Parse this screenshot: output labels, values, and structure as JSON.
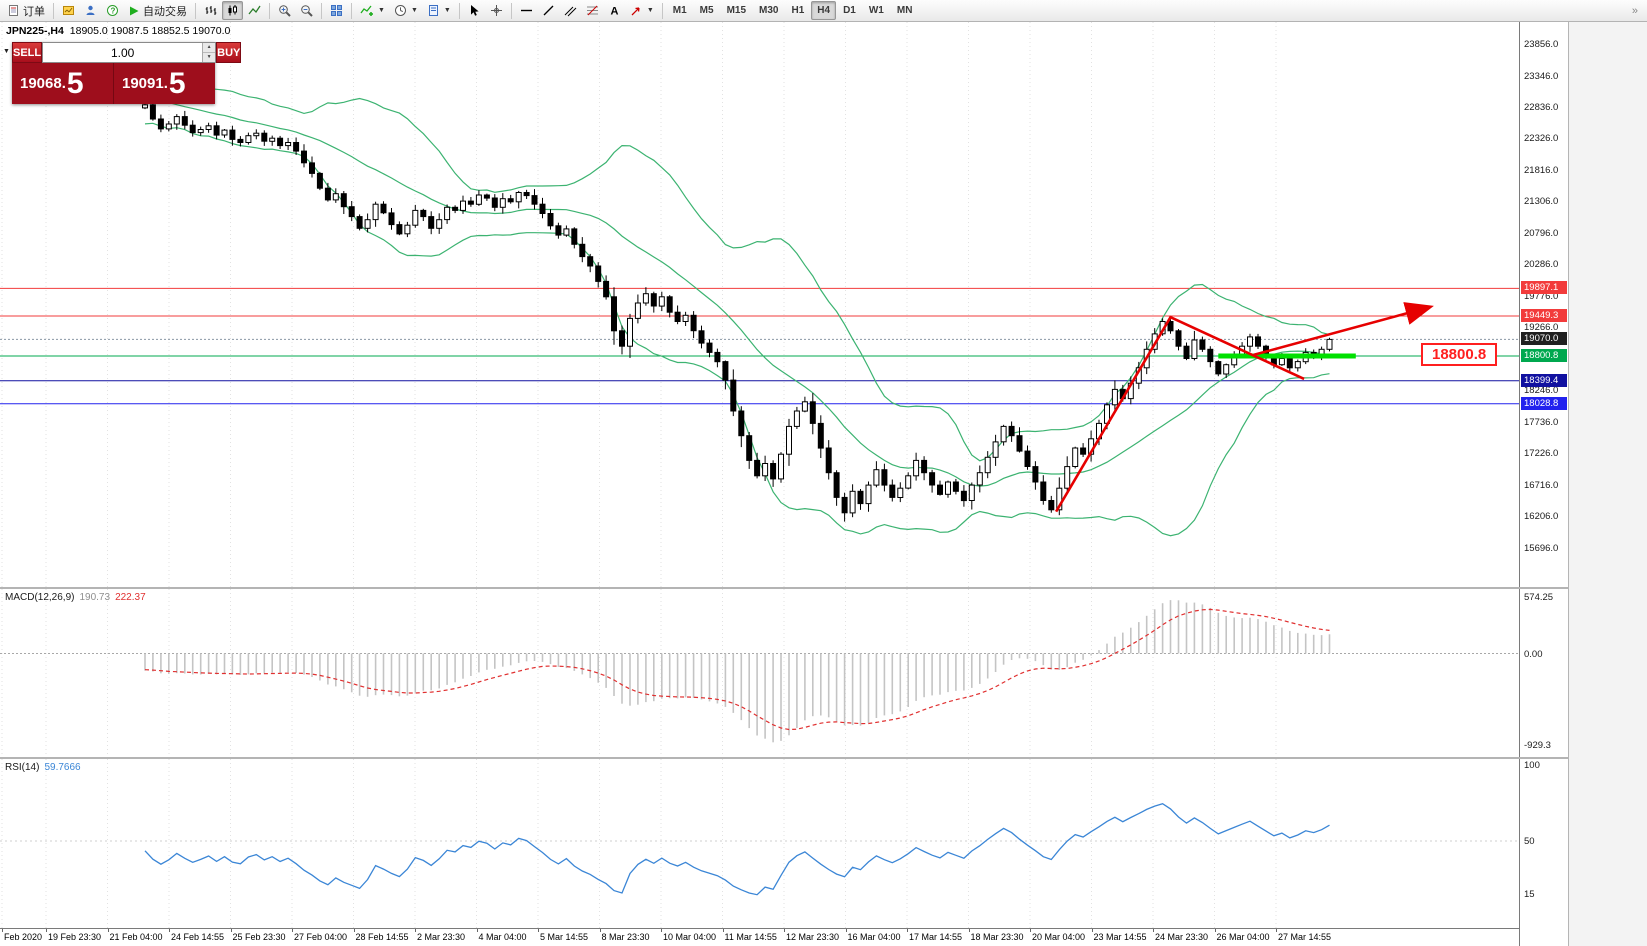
{
  "toolbar": {
    "new_order": "订单",
    "autotrade": "自动交易",
    "timeframes": [
      "M1",
      "M5",
      "M15",
      "M30",
      "H1",
      "H4",
      "D1",
      "W1",
      "MN"
    ],
    "active_timeframe": "H4"
  },
  "chart": {
    "symbol_period": "JPN225-,H4",
    "ohlc": "18905.0 19087.5 18852.5 19070.0"
  },
  "order_panel": {
    "sell_label": "SELL",
    "buy_label": "BUY",
    "volume": "1.00",
    "sell_price": "19068.",
    "sell_price_big": "5",
    "buy_price": "19091.",
    "buy_price_big": "5"
  },
  "levels": [
    {
      "price": 19897.1,
      "label": "19897.1",
      "color": "#f23b3b"
    },
    {
      "price": 19449.3,
      "label": "19449.3",
      "color": "#f23b3b"
    },
    {
      "price": 18800.8,
      "label": "18800.8",
      "color": "#00a84f"
    },
    {
      "price": 18399.4,
      "label": "18399.4",
      "color": "#1111a0"
    },
    {
      "price": 18028.8,
      "label": "18028.8",
      "color": "#2222ee"
    }
  ],
  "current_price": {
    "value": 19070.0,
    "label": "19070.0",
    "color": "#202020"
  },
  "annotation": {
    "text": "18800.8",
    "price": 18800.8
  },
  "drawings": {
    "color": "#e60000",
    "zigzag": [
      [
        114.6,
        16280
      ],
      [
        129.0,
        19430
      ],
      [
        145.8,
        18430
      ]
    ],
    "arrow": [
      [
        139.5,
        18820
      ],
      [
        161.5,
        19590
      ]
    ],
    "support_segment": {
      "i1": 135,
      "i2": 152.3,
      "price": 18800.8,
      "color": "#00e000"
    }
  },
  "chart_data": {
    "type": "candlestick",
    "symbol": "JPN225-",
    "period": "H4",
    "ohlc_display": {
      "open": "18905.0",
      "high": "19087.5",
      "low": "18852.5",
      "close": "19070.0"
    },
    "price_axis": {
      "top_price": 24212,
      "bottom_price": 15059,
      "ticks": [
        "23856.0",
        "23346.0",
        "22836.0",
        "22326.0",
        "21816.0",
        "21306.0",
        "20796.0",
        "20286.0",
        "19776.0",
        "19266.0",
        "18756.0",
        "18246.0",
        "17736.0",
        "17226.0",
        "16716.0",
        "16206.0",
        "15696.0"
      ]
    },
    "pre_closes": [
      23450,
      23600,
      23780,
      23900,
      24020,
      23880,
      23740,
      23830,
      23620,
      23440,
      23540,
      23660,
      23470,
      23280,
      23380,
      23180,
      22990,
      23080,
      23170,
      22980,
      22880,
      22980,
      23070,
      22920,
      22780,
      22870,
      22960,
      22820,
      22720,
      22820
    ],
    "closes": [
      22870,
      22640,
      22480,
      22560,
      22680,
      22540,
      22420,
      22470,
      22530,
      22380,
      22460,
      22310,
      22260,
      22370,
      22410,
      22280,
      22330,
      22210,
      22260,
      22120,
      21930,
      21760,
      21520,
      21330,
      21430,
      21220,
      21060,
      20870,
      21010,
      21260,
      21120,
      20930,
      20780,
      20920,
      21160,
      21060,
      20870,
      21010,
      21210,
      21160,
      21310,
      21260,
      21410,
      21360,
      21210,
      21350,
      21300,
      21450,
      21400,
      21260,
      21110,
      20910,
      20760,
      20860,
      20610,
      20410,
      20260,
      20010,
      19760,
      19210,
      18960,
      19410,
      19660,
      19810,
      19610,
      19760,
      19510,
      19360,
      19460,
      19210,
      19010,
      18860,
      18710,
      18410,
      17910,
      17510,
      17110,
      16860,
      17060,
      16810,
      17210,
      17660,
      17910,
      18060,
      17710,
      17310,
      16910,
      16510,
      16260,
      16610,
      16410,
      16710,
      16960,
      16710,
      16510,
      16660,
      16860,
      17110,
      16910,
      16710,
      16560,
      16760,
      16610,
      16460,
      16710,
      16910,
      17160,
      17410,
      17660,
      17510,
      17260,
      17010,
      16760,
      16460,
      16310,
      16660,
      17010,
      17310,
      17210,
      17460,
      17710,
      18010,
      18260,
      18110,
      18360,
      18610,
      18910,
      19160,
      19360,
      19210,
      18960,
      18760,
      19060,
      18910,
      18710,
      18510,
      18660,
      18810,
      18960,
      19110,
      18960,
      18810,
      18660,
      18760,
      18610,
      18710,
      18860,
      18810,
      18910,
      19070
    ],
    "bollinger": {
      "period": 20,
      "deviation": 2
    },
    "indicators": [
      {
        "display_name": "MACD(12,26,9)",
        "value_main": "190.73",
        "value_signal": "222.37",
        "ticks": [
          {
            "v": 574.25,
            "label": "574.25"
          },
          {
            "v": 0,
            "label": "0.00"
          },
          {
            "v": -929.3,
            "label": "-929.3"
          }
        ]
      },
      {
        "display_name": "RSI(14)",
        "value": "59.7666",
        "ticks": [
          {
            "v": 100,
            "label": "100"
          },
          {
            "v": 50,
            "label": "50"
          },
          {
            "v": 15,
            "label": "15"
          }
        ]
      }
    ],
    "time_axis": {
      "labels": [
        "Feb 2020",
        "19 Feb 23:30",
        "21 Feb 04:00",
        "24 Feb 14:55",
        "25 Feb 23:30",
        "27 Feb 04:00",
        "28 Feb 14:55",
        "2 Mar 23:30",
        "4 Mar 04:00",
        "5 Mar 14:55",
        "8 Mar 23:30",
        "10 Mar 04:00",
        "11 Mar 14:55",
        "12 Mar 23:30",
        "16 Mar 04:00",
        "17 Mar 14:55",
        "18 Mar 23:30",
        "20 Mar 04:00",
        "23 Mar 14:55",
        "24 Mar 23:30",
        "26 Mar 04:00",
        "27 Mar 14:55"
      ]
    }
  }
}
